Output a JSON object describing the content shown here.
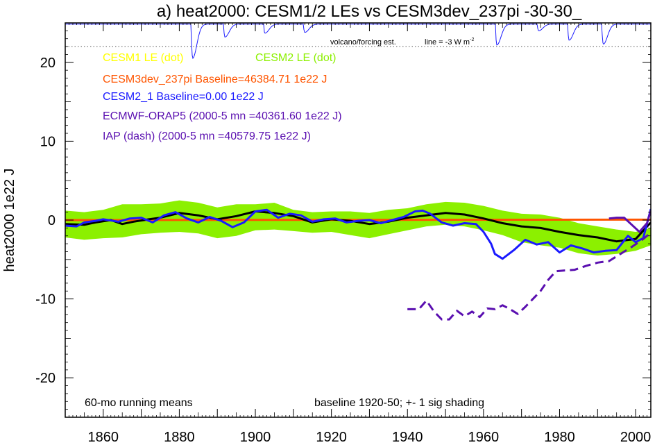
{
  "chart_data": {
    "type": "line",
    "title": "a) heat2000: CESM1/2 LEs vs CESM3dev_237pi -30-30_",
    "ylabel": "heat2000 1e22 J",
    "xlabel": "",
    "xlim": [
      1850,
      2004
    ],
    "ylim": [
      -25,
      25
    ],
    "x_ticks": [
      1860,
      1880,
      1900,
      1920,
      1940,
      1960,
      1980,
      2000
    ],
    "y_ticks": [
      -20,
      -10,
      0,
      10,
      20
    ],
    "grid": false,
    "legend": [
      {
        "text": "CESM1 LE (dot)",
        "color": "#ffff00"
      },
      {
        "text": "CESM2 LE (dot)",
        "color": "#8cf000"
      },
      {
        "text": "CESM3dev_237pi Baseline=46384.71 1e22 J",
        "color": "#ff5500"
      },
      {
        "text": "CESM2_1 Baseline=0.00 1e22 J",
        "color": "#1a1aff"
      },
      {
        "text": "ECMWF-ORAP5 (2000-5 mn =40361.60 1e22 J)",
        "color": "#5a0fb0"
      },
      {
        "text": "IAP (dash) (2000-5 mn =40579.75 1e22 J)",
        "color": "#5a0fb0"
      }
    ],
    "annotations": {
      "bottom_left": "60-mo running means",
      "bottom_right": "baseline 1920-50; +- 1 sig shading",
      "volcano_label": "volcano/forcing est.",
      "volcano_line_label": "line = -3 W m",
      "volcano_line_sup": "-2"
    },
    "volcano_ref_y": 22,
    "volcano_dips": [
      {
        "year": 1883.5,
        "min": 20.5
      },
      {
        "year": 1892,
        "min": 23.2
      },
      {
        "year": 1902.5,
        "min": 23.7
      },
      {
        "year": 1913,
        "min": 23.8
      },
      {
        "year": 1963.5,
        "min": 22.2
      },
      {
        "year": 1974.5,
        "min": 24.0
      },
      {
        "year": 1982.5,
        "min": 22.8
      },
      {
        "year": 1991.5,
        "min": 22.3
      }
    ],
    "series": [
      {
        "name": "CESM2 LE",
        "style": "band",
        "color": "#8cf000",
        "x": [
          1850,
          1855,
          1860,
          1865,
          1870,
          1875,
          1880,
          1885,
          1890,
          1895,
          1900,
          1905,
          1910,
          1915,
          1920,
          1925,
          1930,
          1935,
          1940,
          1945,
          1950,
          1955,
          1960,
          1965,
          1970,
          1975,
          1980,
          1985,
          1990,
          1995,
          2000,
          2004
        ],
        "upper": [
          1.2,
          1.0,
          1.3,
          2.0,
          2.0,
          2.1,
          2.5,
          2.2,
          1.6,
          2.0,
          2.0,
          2.2,
          1.3,
          1.0,
          1.1,
          1.1,
          0.9,
          1.3,
          1.5,
          2.0,
          2.3,
          2.2,
          1.8,
          1.2,
          0.8,
          0.7,
          0.3,
          -0.4,
          -0.8,
          -1.2,
          -1.5,
          -1.0
        ],
        "lower": [
          -2.2,
          -2.5,
          -2.3,
          -2.2,
          -1.8,
          -1.6,
          -1.5,
          -1.7,
          -2.3,
          -2.0,
          -1.3,
          -1.2,
          -1.4,
          -1.6,
          -1.5,
          -1.9,
          -2.3,
          -1.8,
          -1.3,
          -0.8,
          -0.6,
          -0.8,
          -1.3,
          -1.9,
          -2.8,
          -3.2,
          -3.5,
          -4.2,
          -4.5,
          -4.3,
          -3.9,
          -3.2
        ]
      },
      {
        "name": "CESM3dev_237pi",
        "style": "solid",
        "color": "#ff5500",
        "x": [
          1850,
          2004
        ],
        "y": [
          0.0,
          0.05
        ]
      },
      {
        "name": "CESM2 LE mean",
        "style": "solid",
        "color": "#000000",
        "x": [
          1850,
          1855,
          1858,
          1862,
          1865,
          1868,
          1872,
          1875,
          1880,
          1885,
          1890,
          1895,
          1900,
          1905,
          1910,
          1915,
          1920,
          1925,
          1930,
          1935,
          1940,
          1945,
          1950,
          1955,
          1960,
          1965,
          1970,
          1975,
          1980,
          1985,
          1990,
          1995,
          2000,
          2004
        ],
        "y": [
          -0.5,
          -0.6,
          -0.3,
          0.0,
          -0.5,
          -0.2,
          0.1,
          0.3,
          0.9,
          0.6,
          0.1,
          0.5,
          1.1,
          0.9,
          0.5,
          -0.3,
          0.1,
          -0.1,
          -0.5,
          -0.2,
          0.3,
          0.6,
          0.9,
          0.7,
          0.2,
          -0.4,
          -0.8,
          -1.0,
          -1.5,
          -1.9,
          -2.2,
          -2.7,
          -2.4,
          -0.3
        ]
      },
      {
        "name": "CESM2_1",
        "style": "solid",
        "color": "#1a1aff",
        "x": [
          1850,
          1853,
          1855,
          1858,
          1860,
          1864,
          1867,
          1870,
          1873,
          1876,
          1879,
          1882,
          1885,
          1888,
          1891,
          1894,
          1897,
          1900,
          1903,
          1906,
          1909,
          1912,
          1915,
          1918,
          1921,
          1924,
          1927,
          1930,
          1933,
          1936,
          1939,
          1942,
          1944,
          1946,
          1949,
          1952,
          1955,
          1958,
          1960,
          1962,
          1963,
          1965,
          1968,
          1971,
          1974,
          1977,
          1980,
          1983,
          1986,
          1989,
          1992,
          1995,
          1998,
          2000,
          2002,
          2004
        ],
        "y": [
          -0.7,
          -0.8,
          -0.3,
          -0.1,
          0.1,
          -0.2,
          0.2,
          0.3,
          -0.3,
          0.6,
          1.0,
          0.2,
          -0.3,
          0.4,
          -0.1,
          -0.9,
          -0.3,
          1.1,
          1.3,
          0.3,
          0.8,
          0.6,
          -0.2,
          0.1,
          0.2,
          -0.3,
          -0.1,
          0.0,
          -0.4,
          0.0,
          0.4,
          1.1,
          1.2,
          0.8,
          -0.3,
          -0.7,
          -0.4,
          -0.5,
          -1.5,
          -3.0,
          -4.3,
          -4.9,
          -3.8,
          -2.5,
          -3.1,
          -2.8,
          -4.1,
          -3.2,
          -3.6,
          -4.1,
          -3.9,
          -3.8,
          -2.0,
          -2.8,
          -2.3,
          1.4
        ]
      },
      {
        "name": "ECMWF-ORAP5",
        "style": "solid",
        "color": "#5a0fb0",
        "x": [
          1993,
          1995,
          1997,
          1999,
          2001,
          2003,
          2004
        ],
        "y": [
          0.2,
          0.3,
          0.3,
          -0.6,
          -1.5,
          -0.4,
          1.2
        ]
      },
      {
        "name": "IAP",
        "style": "dash",
        "color": "#5a0fb0",
        "x": [
          1940,
          1943,
          1945,
          1947,
          1949,
          1951,
          1953,
          1955,
          1957,
          1959,
          1961,
          1963,
          1965,
          1967,
          1969,
          1971,
          1973,
          1975,
          1977,
          1979,
          1981,
          1984,
          1987,
          1990,
          1993,
          1996,
          1999,
          2002,
          2004
        ],
        "y": [
          -11.3,
          -11.3,
          -10.2,
          -11.6,
          -12.6,
          -12.6,
          -11.5,
          -12.2,
          -11.6,
          -12.3,
          -11.2,
          -11.3,
          -10.8,
          -11.3,
          -11.9,
          -11.0,
          -10.0,
          -9.0,
          -7.6,
          -6.5,
          -6.4,
          -6.3,
          -5.8,
          -5.4,
          -5.2,
          -4.3,
          -3.4,
          -2.4,
          -1.6
        ]
      }
    ]
  }
}
